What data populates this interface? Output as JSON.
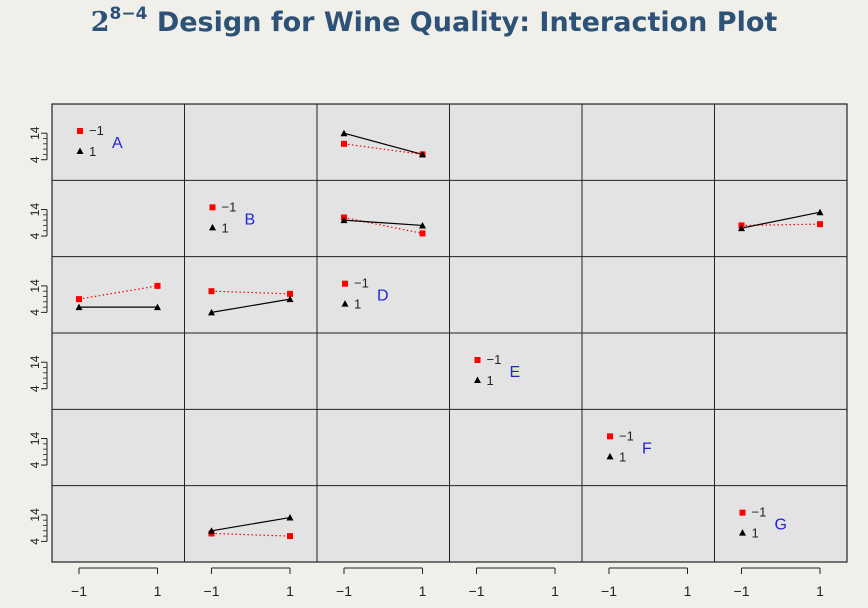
{
  "title": {
    "base": "2",
    "exponent": "8−4",
    "text": "Design for Wine Quality: Interaction Plot"
  },
  "colors": {
    "panel_background": "#e3e3e3",
    "level_minus": "#ff0000",
    "level_plus": "#000000",
    "factor_label": "#2222dd",
    "title": "#2d5277"
  },
  "chart_data": {
    "type": "line",
    "factors": [
      "A",
      "B",
      "D",
      "E",
      "F",
      "G"
    ],
    "x_ticks": [
      -1,
      1
    ],
    "x_tick_labels": [
      "−1",
      "1"
    ],
    "y_tick_labels": [
      "14",
      "4"
    ],
    "ylim": [
      0,
      22
    ],
    "legend_labels": [
      "−1",
      "1"
    ],
    "grid": false,
    "interactions": [
      {
        "row": "A",
        "col": "D",
        "minus": [
          10,
          6
        ],
        "plus": [
          14,
          6
        ]
      },
      {
        "row": "B",
        "col": "D",
        "minus": [
          11,
          5
        ],
        "plus": [
          10,
          8
        ]
      },
      {
        "row": "B",
        "col": "G",
        "minus": [
          8,
          8.5
        ],
        "plus": [
          7,
          13
        ]
      },
      {
        "row": "D",
        "col": "A",
        "minus": [
          9,
          14
        ],
        "plus": [
          6,
          6
        ]
      },
      {
        "row": "D",
        "col": "B",
        "minus": [
          12,
          11
        ],
        "plus": [
          4,
          9
        ]
      },
      {
        "row": "G",
        "col": "B",
        "minus": [
          7,
          6
        ],
        "plus": [
          8,
          13
        ]
      }
    ]
  }
}
